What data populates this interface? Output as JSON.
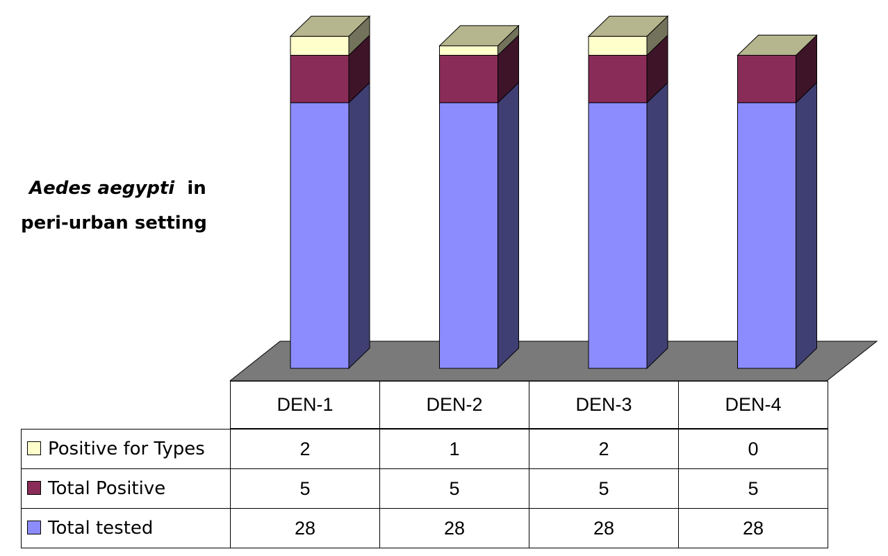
{
  "title": {
    "species": "Aedes aegypti",
    "suffix": "in",
    "line2": "peri-urban setting"
  },
  "colors": {
    "total_tested": "#8c8cff",
    "total_positive": "#892c58",
    "positive_for_types": "#ffffcc",
    "floor": "#7a7a7a"
  },
  "chart_data": {
    "type": "bar",
    "stacked": true,
    "three_d": true,
    "categories": [
      "DEN-1",
      "DEN-2",
      "DEN-3",
      "DEN-4"
    ],
    "series": [
      {
        "name": "Total tested",
        "values": [
          28,
          28,
          28,
          28
        ],
        "color": "#8c8cff"
      },
      {
        "name": "Total Positive",
        "values": [
          5,
          5,
          5,
          5
        ],
        "color": "#892c58"
      },
      {
        "name": "Positive for Types",
        "values": [
          2,
          1,
          2,
          0
        ],
        "color": "#ffffcc"
      }
    ],
    "legend_placement": "data-table-left",
    "grid": false
  },
  "table": {
    "rows": [
      {
        "label": "Positive for Types",
        "values": [
          "2",
          "1",
          "2",
          "0"
        ]
      },
      {
        "label": "Total Positive",
        "values": [
          "5",
          "5",
          "5",
          "5"
        ]
      },
      {
        "label": "Total tested",
        "values": [
          "28",
          "28",
          "28",
          "28"
        ]
      }
    ]
  }
}
